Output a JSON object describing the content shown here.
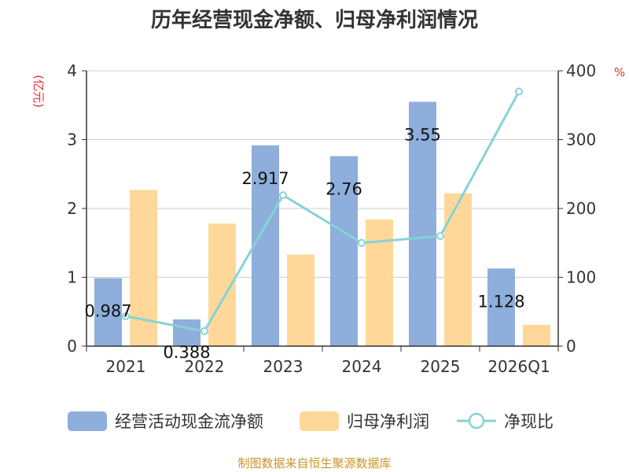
{
  "chart_data": {
    "type": "bar",
    "title": "历年经营现金净额、归母净利润情况",
    "categories": [
      "2021",
      "2022",
      "2023",
      "2024",
      "2025",
      "2026Q1"
    ],
    "series": [
      {
        "name": "经营活动现金流净额",
        "type": "bar",
        "axis": "left",
        "color": "#8eaedb",
        "values": [
          0.987,
          0.388,
          2.917,
          2.76,
          3.55,
          1.128
        ]
      },
      {
        "name": "归母净利润",
        "type": "bar",
        "axis": "left",
        "color": "#ffd899",
        "values": [
          2.27,
          1.78,
          1.33,
          1.84,
          2.22,
          0.31
        ]
      },
      {
        "name": "净现比",
        "type": "line",
        "axis": "right",
        "color": "#86d3d6",
        "values": [
          43.5,
          21.8,
          219.3,
          150.0,
          159.9,
          369.8
        ]
      }
    ],
    "data_labels": [
      "0.987",
      "0.388",
      "2.917",
      "2.76",
      "3.55",
      "1.128"
    ],
    "y_left": {
      "unit": "(亿元)",
      "range": [
        0,
        4
      ],
      "ticks": [
        "0",
        "1",
        "2",
        "3",
        "4"
      ]
    },
    "y_right": {
      "unit": "%",
      "range": [
        0,
        400
      ],
      "ticks": [
        "0",
        "100",
        "200",
        "300",
        "400"
      ]
    },
    "grid": true,
    "legend_position": "bottom"
  },
  "source": "制图数据来自恒生聚源数据库"
}
